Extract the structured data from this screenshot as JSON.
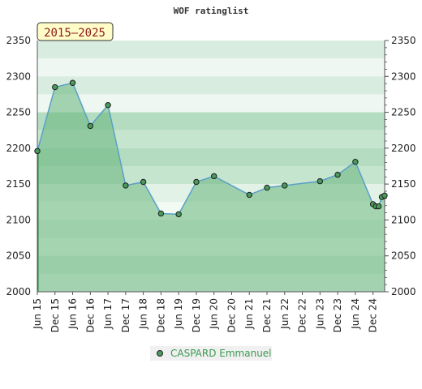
{
  "chart_data": {
    "type": "area",
    "title": "WOF ratinglist",
    "range_badge": "2015–2025",
    "xlabel": "",
    "ylabel": "",
    "ylim": [
      2000,
      2350
    ],
    "yticks": [
      2000,
      2050,
      2100,
      2150,
      2200,
      2250,
      2300,
      2350
    ],
    "xlim": [
      2015.42,
      2025.25
    ],
    "xticks": [
      {
        "label": "Jun 15",
        "t": 2015.42
      },
      {
        "label": "Dec 15",
        "t": 2015.92
      },
      {
        "label": "Jun 16",
        "t": 2016.42
      },
      {
        "label": "Dec 16",
        "t": 2016.92
      },
      {
        "label": "Jun 17",
        "t": 2017.42
      },
      {
        "label": "Dec 17",
        "t": 2017.92
      },
      {
        "label": "Jun 18",
        "t": 2018.42
      },
      {
        "label": "Dec 18",
        "t": 2018.92
      },
      {
        "label": "Jun 19",
        "t": 2019.42
      },
      {
        "label": "Dec 19",
        "t": 2019.92
      },
      {
        "label": "Jun 20",
        "t": 2020.42
      },
      {
        "label": "Dec 20",
        "t": 2020.92
      },
      {
        "label": "Jun 21",
        "t": 2021.42
      },
      {
        "label": "Dec 21",
        "t": 2021.92
      },
      {
        "label": "Jun 22",
        "t": 2022.42
      },
      {
        "label": "Dec 22",
        "t": 2022.92
      },
      {
        "label": "Jun 23",
        "t": 2023.42
      },
      {
        "label": "Dec 23",
        "t": 2023.92
      },
      {
        "label": "Jun 24",
        "t": 2024.42
      },
      {
        "label": "Dec 24",
        "t": 2024.92
      }
    ],
    "grid": true,
    "legend_position": "bottom",
    "series": [
      {
        "name": "CASPARD Emmanuel",
        "color": "#5aa0c8",
        "fill": "#66b47a",
        "marker_color": "#4a9a5c",
        "points": [
          {
            "t": 2015.42,
            "y": 2196
          },
          {
            "t": 2015.92,
            "y": 2285
          },
          {
            "t": 2016.42,
            "y": 2291
          },
          {
            "t": 2016.92,
            "y": 2231
          },
          {
            "t": 2017.42,
            "y": 2260
          },
          {
            "t": 2017.92,
            "y": 2148
          },
          {
            "t": 2018.42,
            "y": 2153
          },
          {
            "t": 2018.92,
            "y": 2109
          },
          {
            "t": 2019.42,
            "y": 2108
          },
          {
            "t": 2019.92,
            "y": 2153
          },
          {
            "t": 2020.42,
            "y": 2161
          },
          {
            "t": 2021.42,
            "y": 2135
          },
          {
            "t": 2021.92,
            "y": 2145
          },
          {
            "t": 2022.42,
            "y": 2148
          },
          {
            "t": 2023.42,
            "y": 2154
          },
          {
            "t": 2023.92,
            "y": 2163
          },
          {
            "t": 2024.42,
            "y": 2181
          },
          {
            "t": 2024.92,
            "y": 2122
          },
          {
            "t": 2025.0,
            "y": 2119
          },
          {
            "t": 2025.08,
            "y": 2119
          },
          {
            "t": 2025.17,
            "y": 2132
          },
          {
            "t": 2025.25,
            "y": 2134
          }
        ]
      }
    ]
  }
}
